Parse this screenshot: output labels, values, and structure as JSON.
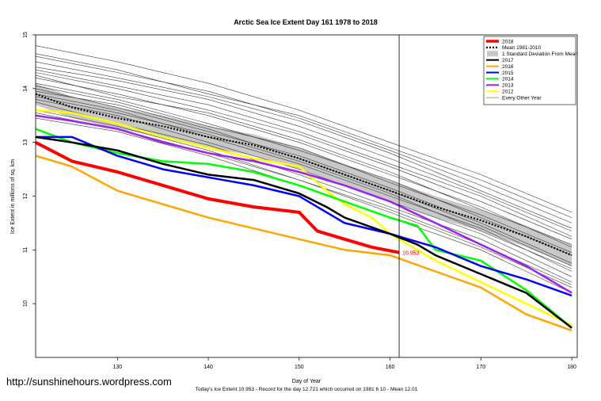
{
  "watermark": "http://sunshinehours.wordpress.com",
  "footer": "Today's Ice Extent  10.953  - Record for the day  12.721 which occurred on 1981 6 10  - Mean  12.01",
  "chart_data": {
    "type": "line",
    "title": "Arctic Sea Ice Extent Day 161 1978 to 2018",
    "xlabel": "Day of Year",
    "ylabel": "Ice Extent in millions of sq. km",
    "xlim": [
      121,
      180.6
    ],
    "ylim": [
      9.0,
      15.0
    ],
    "x_ticks": [
      130,
      140,
      150,
      160,
      170,
      180
    ],
    "y_ticks": [
      10,
      11,
      12,
      13,
      14,
      15
    ],
    "grid": false,
    "legend_position": "top-right",
    "current_day": 161,
    "current_value_label": "10.953",
    "current_value": 10.953,
    "mean_band_sd": 0.2,
    "legend": [
      {
        "label": "2018",
        "color": "#ff0000",
        "style": "thick"
      },
      {
        "label": "Mean 1981-2010",
        "color": "#000000",
        "style": "dotted"
      },
      {
        "label": "1 Standard Deviation From Mean",
        "color": "#c8c8c8",
        "style": "box"
      },
      {
        "label": "2017",
        "color": "#000000",
        "style": "solid"
      },
      {
        "label": "2016",
        "color": "#ffa500",
        "style": "solid"
      },
      {
        "label": "2015",
        "color": "#0000ff",
        "style": "solid"
      },
      {
        "label": "2014",
        "color": "#00ff00",
        "style": "solid"
      },
      {
        "label": "2013",
        "color": "#a020f0",
        "style": "solid"
      },
      {
        "label": "2012",
        "color": "#ffff00",
        "style": "solid"
      },
      {
        "label": "Every Other Year",
        "color": "#555555",
        "style": "thin"
      }
    ],
    "series": [
      {
        "name": "Mean 1981-2010",
        "color": "#000000",
        "width": 2.2,
        "dash": "2,2",
        "x": [
          121,
          125,
          130,
          135,
          140,
          145,
          150,
          155,
          160,
          165,
          170,
          175,
          180
        ],
        "y": [
          13.9,
          13.65,
          13.45,
          13.3,
          13.1,
          12.95,
          12.7,
          12.4,
          12.1,
          11.8,
          11.55,
          11.25,
          10.9
        ]
      },
      {
        "name": "2018",
        "color": "#ff0000",
        "width": 4,
        "x": [
          121,
          125,
          130,
          135,
          140,
          145,
          150,
          152,
          155,
          158,
          161
        ],
        "y": [
          13.0,
          12.65,
          12.45,
          12.2,
          11.95,
          11.8,
          11.7,
          11.35,
          11.2,
          11.05,
          10.95
        ]
      },
      {
        "name": "2017",
        "color": "#000000",
        "width": 2.5,
        "x": [
          121,
          125,
          130,
          135,
          140,
          145,
          150,
          153,
          155,
          160,
          163,
          165,
          170,
          175,
          180
        ],
        "y": [
          13.1,
          13.0,
          12.85,
          12.6,
          12.4,
          12.3,
          12.05,
          11.8,
          11.6,
          11.3,
          11.1,
          10.9,
          10.55,
          10.2,
          9.55
        ]
      },
      {
        "name": "2016",
        "color": "#ffa500",
        "width": 2.5,
        "x": [
          121,
          125,
          130,
          135,
          140,
          145,
          150,
          155,
          160,
          165,
          170,
          173,
          175,
          180
        ],
        "y": [
          12.75,
          12.55,
          12.1,
          11.85,
          11.6,
          11.4,
          11.2,
          11.0,
          10.9,
          10.6,
          10.3,
          10.0,
          9.8,
          9.5
        ]
      },
      {
        "name": "2015",
        "color": "#0000ff",
        "width": 2.5,
        "x": [
          121,
          125,
          130,
          135,
          140,
          145,
          150,
          155,
          160,
          165,
          170,
          175,
          180
        ],
        "y": [
          13.1,
          13.1,
          12.75,
          12.5,
          12.35,
          12.2,
          12.0,
          11.5,
          11.3,
          11.05,
          10.7,
          10.45,
          10.15
        ]
      },
      {
        "name": "2014",
        "color": "#00ff00",
        "width": 2.5,
        "x": [
          121,
          125,
          130,
          135,
          140,
          145,
          150,
          155,
          160,
          163,
          165,
          170,
          175,
          180
        ],
        "y": [
          13.25,
          13.0,
          12.8,
          12.65,
          12.6,
          12.45,
          12.2,
          11.9,
          11.6,
          11.45,
          11.0,
          10.8,
          10.25,
          9.55
        ]
      },
      {
        "name": "2013",
        "color": "#a020f0",
        "width": 2.5,
        "x": [
          121,
          125,
          130,
          135,
          140,
          145,
          150,
          155,
          160,
          165,
          170,
          175,
          180
        ],
        "y": [
          13.5,
          13.4,
          13.25,
          13.0,
          12.8,
          12.65,
          12.45,
          12.2,
          11.9,
          11.5,
          11.1,
          10.7,
          10.2
        ]
      },
      {
        "name": "2012",
        "color": "#ffff00",
        "width": 2.5,
        "x": [
          121,
          125,
          130,
          135,
          140,
          145,
          150,
          153,
          155,
          158,
          160,
          163,
          165,
          170,
          175,
          180
        ],
        "y": [
          13.6,
          13.55,
          13.35,
          13.1,
          12.9,
          12.7,
          12.55,
          12.1,
          11.85,
          11.6,
          11.3,
          11.0,
          10.8,
          10.4,
          10.0,
          9.6
        ]
      }
    ],
    "other_years": [
      {
        "x": [
          121,
          130,
          140,
          150,
          160,
          170,
          180
        ],
        "y": [
          14.8,
          14.5,
          14.1,
          13.6,
          13.0,
          12.4,
          11.7
        ]
      },
      {
        "x": [
          121,
          130,
          140,
          150,
          160,
          170,
          180
        ],
        "y": [
          14.6,
          14.3,
          13.95,
          13.45,
          12.85,
          12.2,
          11.5
        ]
      },
      {
        "x": [
          121,
          130,
          140,
          150,
          160,
          170,
          180
        ],
        "y": [
          14.4,
          14.15,
          13.8,
          13.3,
          12.7,
          12.05,
          11.35
        ]
      },
      {
        "x": [
          121,
          130,
          140,
          150,
          160,
          170,
          180
        ],
        "y": [
          14.3,
          14.0,
          13.6,
          13.15,
          12.55,
          11.9,
          11.2
        ]
      },
      {
        "x": [
          121,
          130,
          140,
          150,
          160,
          170,
          180
        ],
        "y": [
          14.2,
          13.9,
          13.5,
          13.0,
          12.4,
          11.8,
          11.05
        ]
      },
      {
        "x": [
          121,
          130,
          140,
          150,
          160,
          170,
          180
        ],
        "y": [
          14.1,
          13.8,
          13.35,
          12.85,
          12.3,
          11.6,
          10.9
        ]
      },
      {
        "x": [
          121,
          130,
          140,
          150,
          160,
          170,
          180
        ],
        "y": [
          14.0,
          13.65,
          13.2,
          12.75,
          12.15,
          11.5,
          10.75
        ]
      },
      {
        "x": [
          121,
          130,
          140,
          150,
          160,
          170,
          180
        ],
        "y": [
          13.9,
          13.6,
          13.1,
          12.6,
          12.0,
          11.4,
          10.6
        ]
      },
      {
        "x": [
          121,
          130,
          140,
          150,
          160,
          170,
          180
        ],
        "y": [
          13.8,
          13.5,
          13.0,
          12.5,
          11.9,
          11.3,
          10.5
        ]
      },
      {
        "x": [
          121,
          130,
          140,
          150,
          160,
          170,
          180
        ],
        "y": [
          13.75,
          13.35,
          12.95,
          12.4,
          11.8,
          11.2,
          10.4
        ]
      },
      {
        "x": [
          121,
          130,
          140,
          150,
          160,
          170,
          180
        ],
        "y": [
          13.6,
          13.3,
          12.85,
          12.3,
          11.7,
          11.05,
          10.3
        ]
      },
      {
        "x": [
          121,
          130,
          140,
          150,
          160,
          170,
          180
        ],
        "y": [
          13.55,
          13.25,
          12.8,
          12.3,
          11.75,
          11.1,
          10.35
        ]
      },
      {
        "x": [
          121,
          130,
          140,
          150,
          160,
          170,
          180
        ],
        "y": [
          14.25,
          13.85,
          13.55,
          13.05,
          12.45,
          11.75,
          11.1
        ]
      },
      {
        "x": [
          121,
          130,
          140,
          150,
          160,
          170,
          180
        ],
        "y": [
          14.05,
          13.75,
          13.3,
          12.9,
          12.25,
          11.65,
          10.95
        ]
      },
      {
        "x": [
          121,
          130,
          140,
          150,
          160,
          170,
          180
        ],
        "y": [
          13.95,
          13.7,
          13.25,
          12.7,
          12.1,
          11.45,
          10.7
        ]
      },
      {
        "x": [
          121,
          130,
          140,
          150,
          160,
          170,
          180
        ],
        "y": [
          13.85,
          13.55,
          13.15,
          12.65,
          12.05,
          11.35,
          10.65
        ]
      },
      {
        "x": [
          121,
          130,
          140,
          150,
          160,
          170,
          180
        ],
        "y": [
          13.45,
          13.2,
          12.75,
          12.2,
          11.6,
          11.0,
          10.2
        ]
      },
      {
        "x": [
          121,
          130,
          140,
          150,
          160,
          170,
          180
        ],
        "y": [
          14.5,
          14.2,
          13.85,
          13.4,
          12.8,
          12.1,
          11.4
        ]
      },
      {
        "x": [
          121,
          130,
          140,
          150,
          160,
          170,
          180
        ],
        "y": [
          14.65,
          14.35,
          13.9,
          13.5,
          12.9,
          12.3,
          11.6
        ]
      },
      {
        "x": [
          121,
          130,
          140,
          150,
          160,
          170,
          180
        ],
        "y": [
          14.35,
          14.05,
          13.7,
          13.2,
          12.6,
          12.0,
          11.25
        ]
      }
    ]
  }
}
